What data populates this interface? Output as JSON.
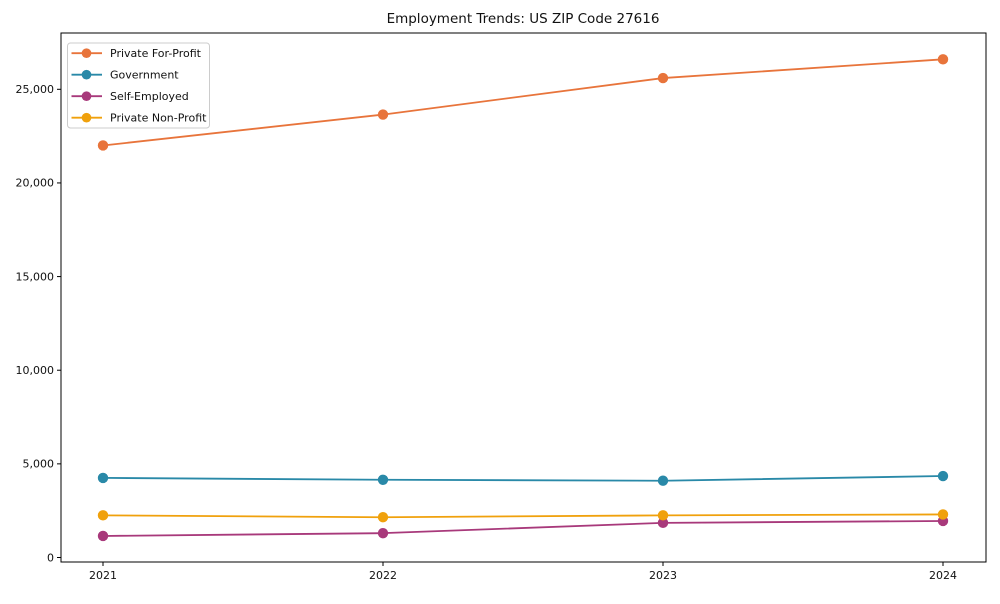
{
  "figure": {
    "title": "Employment Trends: US ZIP Code 27616"
  },
  "chart_data": {
    "type": "line",
    "title": "Employment Trends: US ZIP Code 27616",
    "xlabel": "",
    "ylabel": "",
    "categories": [
      "2021",
      "2022",
      "2023",
      "2024"
    ],
    "series": [
      {
        "name": "Private For-Profit",
        "color": "#e8743b",
        "values": [
          22000,
          23650,
          25600,
          26600
        ]
      },
      {
        "name": "Government",
        "color": "#2989a8",
        "values": [
          4250,
          4150,
          4100,
          4350
        ]
      },
      {
        "name": "Self-Employed",
        "color": "#a8397b",
        "values": [
          1150,
          1300,
          1850,
          1950
        ]
      },
      {
        "name": "Private Non-Profit",
        "color": "#f0a10c",
        "values": [
          2250,
          2150,
          2250,
          2300
        ]
      }
    ],
    "yticks": [
      0,
      5000,
      10000,
      15000,
      20000,
      25000
    ],
    "ytick_labels": [
      "0",
      "5,000",
      "10,000",
      "15,000",
      "20,000",
      "25,000"
    ],
    "ylim": [
      0,
      28000
    ],
    "grid": false,
    "marker": "circle",
    "legend_position": "upper-left",
    "colors": {
      "spine": "#000000",
      "legend_border": "#cccccc",
      "legend_background": "#ffffff",
      "text": "#111111"
    }
  }
}
